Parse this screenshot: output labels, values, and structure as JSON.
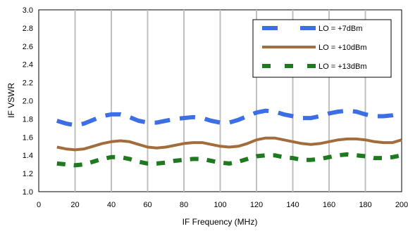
{
  "chart_data": {
    "type": "line",
    "xlabel": "IF Frequency (MHz)",
    "ylabel": "IF VSWR",
    "xlim": [
      0,
      200
    ],
    "ylim": [
      1.0,
      3.0
    ],
    "x_ticks": [
      "0",
      "20",
      "40",
      "60",
      "80",
      "100",
      "120",
      "140",
      "160",
      "180",
      "200"
    ],
    "y_ticks": [
      "1.0",
      "1.2",
      "1.4",
      "1.6",
      "1.8",
      "2.0",
      "2.2",
      "2.4",
      "2.6",
      "2.8",
      "3.0"
    ],
    "grid": "vertical",
    "legend_position": "top-right",
    "series": [
      {
        "name": "LO = +7dBm",
        "color": "#3c6ee6",
        "style": "dashed",
        "x": [
          10,
          15,
          20,
          25,
          30,
          35,
          40,
          45,
          50,
          55,
          60,
          65,
          70,
          75,
          80,
          85,
          90,
          95,
          100,
          105,
          110,
          115,
          120,
          125,
          130,
          135,
          140,
          145,
          150,
          155,
          160,
          165,
          170,
          175,
          180,
          185,
          190,
          195,
          200
        ],
        "values": [
          1.78,
          1.75,
          1.73,
          1.75,
          1.79,
          1.83,
          1.85,
          1.85,
          1.82,
          1.78,
          1.76,
          1.76,
          1.78,
          1.8,
          1.81,
          1.82,
          1.81,
          1.78,
          1.76,
          1.76,
          1.79,
          1.83,
          1.87,
          1.89,
          1.88,
          1.85,
          1.83,
          1.81,
          1.81,
          1.83,
          1.86,
          1.88,
          1.89,
          1.88,
          1.85,
          1.83,
          1.83,
          1.84,
          1.86
        ]
      },
      {
        "name": "LO = +10dBm",
        "color": "#a26d3b",
        "style": "solid",
        "x": [
          10,
          15,
          20,
          25,
          30,
          35,
          40,
          45,
          50,
          55,
          60,
          65,
          70,
          75,
          80,
          85,
          90,
          95,
          100,
          105,
          110,
          115,
          120,
          125,
          130,
          135,
          140,
          145,
          150,
          155,
          160,
          165,
          170,
          175,
          180,
          185,
          190,
          195,
          200
        ],
        "values": [
          1.49,
          1.47,
          1.46,
          1.47,
          1.5,
          1.53,
          1.55,
          1.56,
          1.55,
          1.52,
          1.49,
          1.48,
          1.49,
          1.51,
          1.53,
          1.54,
          1.54,
          1.52,
          1.5,
          1.49,
          1.5,
          1.53,
          1.57,
          1.59,
          1.59,
          1.57,
          1.55,
          1.53,
          1.52,
          1.53,
          1.55,
          1.57,
          1.58,
          1.58,
          1.57,
          1.55,
          1.54,
          1.54,
          1.57
        ]
      },
      {
        "name": "LO = +13dBm",
        "color": "#1f7a1f",
        "style": "dashed",
        "x": [
          10,
          15,
          20,
          25,
          30,
          35,
          40,
          45,
          50,
          55,
          60,
          65,
          70,
          75,
          80,
          85,
          90,
          95,
          100,
          105,
          110,
          115,
          120,
          125,
          130,
          135,
          140,
          145,
          150,
          155,
          160,
          165,
          170,
          175,
          180,
          185,
          190,
          195,
          200
        ],
        "values": [
          1.31,
          1.3,
          1.29,
          1.3,
          1.33,
          1.36,
          1.38,
          1.38,
          1.36,
          1.33,
          1.31,
          1.31,
          1.32,
          1.34,
          1.35,
          1.36,
          1.36,
          1.34,
          1.32,
          1.31,
          1.33,
          1.36,
          1.39,
          1.4,
          1.4,
          1.38,
          1.37,
          1.35,
          1.35,
          1.36,
          1.38,
          1.4,
          1.41,
          1.4,
          1.39,
          1.37,
          1.37,
          1.38,
          1.4
        ]
      }
    ]
  }
}
